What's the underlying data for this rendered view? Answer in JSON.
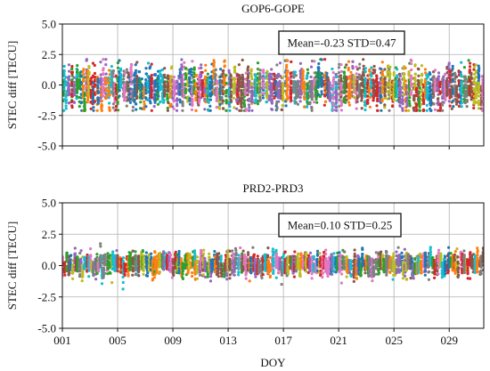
{
  "chart_data": [
    {
      "type": "scatter",
      "title": "GOP6-GOPE",
      "xlabel": "",
      "ylabel": "STEC diff [TECU]",
      "ylim": [
        -5.0,
        5.0
      ],
      "xlim": [
        1,
        31.5
      ],
      "yticks": [
        -5.0,
        -2.5,
        0.0,
        2.5,
        5.0
      ],
      "ytick_labels": [
        "-5.0",
        "-2.5",
        "0.0",
        "2.5",
        "5.0"
      ],
      "xticks": [
        1,
        5,
        9,
        13,
        17,
        21,
        25,
        29
      ],
      "xtick_labels": [
        "",
        "",
        "",
        "",
        "",
        "",
        "",
        ""
      ],
      "grid": true,
      "stats_box": "Mean=-0.23 STD=0.47",
      "stats_position": "top-right",
      "mean": -0.23,
      "std": 0.47,
      "point_colors": [
        "#1f77b4",
        "#ff7f0e",
        "#2ca02c",
        "#d62728",
        "#9467bd",
        "#8c564b",
        "#e377c2",
        "#7f7f7f",
        "#bcbd22",
        "#17becf"
      ]
    },
    {
      "type": "scatter",
      "title": "PRD2-PRD3",
      "xlabel": "DOY",
      "ylabel": "STEC diff [TECU]",
      "ylim": [
        -5.0,
        5.0
      ],
      "xlim": [
        1,
        31.5
      ],
      "yticks": [
        -5.0,
        -2.5,
        0.0,
        2.5,
        5.0
      ],
      "ytick_labels": [
        "-5.0",
        "-2.5",
        "0.0",
        "2.5",
        "5.0"
      ],
      "xticks": [
        1,
        5,
        9,
        13,
        17,
        21,
        25,
        29
      ],
      "xtick_labels": [
        "001",
        "005",
        "009",
        "013",
        "017",
        "021",
        "025",
        "029"
      ],
      "grid": true,
      "stats_box": "Mean=0.10 STD=0.25",
      "stats_position": "top-right",
      "mean": 0.1,
      "std": 0.25,
      "point_colors": [
        "#1f77b4",
        "#ff7f0e",
        "#2ca02c",
        "#d62728",
        "#9467bd",
        "#8c564b",
        "#e377c2",
        "#7f7f7f",
        "#bcbd22",
        "#17becf"
      ]
    }
  ]
}
